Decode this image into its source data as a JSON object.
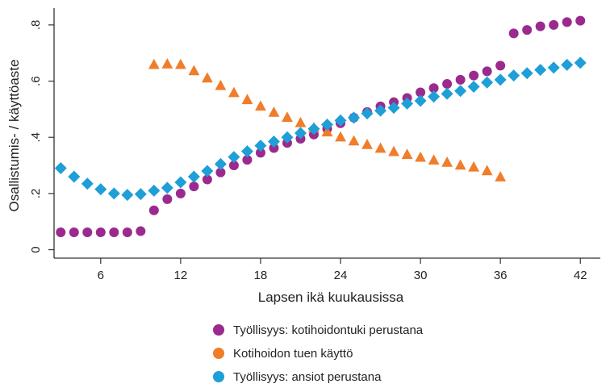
{
  "chart_data": {
    "type": "scatter",
    "title": "",
    "xlabel": "Lapsen ikä kuukausissa",
    "ylabel": "Osallistumis- / käyttöaste",
    "xlim": [
      2.5,
      43.5
    ],
    "ylim": [
      -0.03,
      0.86
    ],
    "x_ticks": [
      6,
      12,
      18,
      24,
      30,
      36,
      42
    ],
    "x_tick_labels": [
      "6",
      "12",
      "18",
      "24",
      "30",
      "36",
      "42"
    ],
    "y_ticks": [
      0,
      0.2,
      0.4,
      0.6,
      0.8
    ],
    "y_tick_labels": [
      "0",
      ".2",
      ".4",
      ".6",
      ".8"
    ],
    "grid": false,
    "legend_position": "bottom",
    "series": [
      {
        "name": "Työllisyys: kotihoidontuki perustana",
        "marker": "circle",
        "color": "#9b2a8e",
        "x": [
          3,
          4,
          5,
          6,
          7,
          8,
          9,
          10,
          11,
          12,
          13,
          14,
          15,
          16,
          17,
          18,
          19,
          20,
          21,
          22,
          23,
          24,
          25,
          26,
          27,
          28,
          29,
          30,
          31,
          32,
          33,
          34,
          35,
          36,
          37,
          38,
          39,
          40,
          41,
          42
        ],
        "y": [
          0.062,
          0.062,
          0.062,
          0.062,
          0.062,
          0.062,
          0.066,
          0.14,
          0.18,
          0.2,
          0.225,
          0.25,
          0.275,
          0.3,
          0.32,
          0.345,
          0.362,
          0.38,
          0.395,
          0.41,
          0.43,
          0.45,
          0.47,
          0.49,
          0.51,
          0.525,
          0.54,
          0.56,
          0.575,
          0.59,
          0.605,
          0.62,
          0.635,
          0.655,
          0.77,
          0.782,
          0.795,
          0.8,
          0.81,
          0.815
        ]
      },
      {
        "name": "Kotihoidon tuen käyttö",
        "marker": "triangle",
        "color": "#f07d2a",
        "x": [
          10,
          11,
          12,
          13,
          14,
          15,
          16,
          17,
          18,
          19,
          20,
          21,
          22,
          23,
          24,
          25,
          26,
          27,
          28,
          29,
          30,
          31,
          32,
          33,
          34,
          35,
          36
        ],
        "y": [
          0.66,
          0.662,
          0.66,
          0.638,
          0.612,
          0.585,
          0.56,
          0.535,
          0.512,
          0.49,
          0.472,
          0.453,
          0.435,
          0.42,
          0.402,
          0.388,
          0.375,
          0.362,
          0.35,
          0.34,
          0.33,
          0.32,
          0.312,
          0.302,
          0.295,
          0.282,
          0.26
        ]
      },
      {
        "name": "Työllisyys: ansiot perustana",
        "marker": "diamond",
        "color": "#1e9fd8",
        "x": [
          3,
          4,
          5,
          6,
          7,
          8,
          9,
          10,
          11,
          12,
          13,
          14,
          15,
          16,
          17,
          18,
          19,
          20,
          21,
          22,
          23,
          24,
          25,
          26,
          27,
          28,
          29,
          30,
          31,
          32,
          33,
          34,
          35,
          36,
          37,
          38,
          39,
          40,
          41,
          42
        ],
        "y": [
          0.29,
          0.26,
          0.235,
          0.215,
          0.2,
          0.195,
          0.198,
          0.21,
          0.22,
          0.24,
          0.26,
          0.28,
          0.305,
          0.33,
          0.35,
          0.37,
          0.385,
          0.4,
          0.415,
          0.43,
          0.445,
          0.46,
          0.47,
          0.485,
          0.495,
          0.505,
          0.52,
          0.53,
          0.545,
          0.555,
          0.565,
          0.58,
          0.595,
          0.605,
          0.62,
          0.628,
          0.64,
          0.648,
          0.658,
          0.665
        ]
      }
    ]
  }
}
